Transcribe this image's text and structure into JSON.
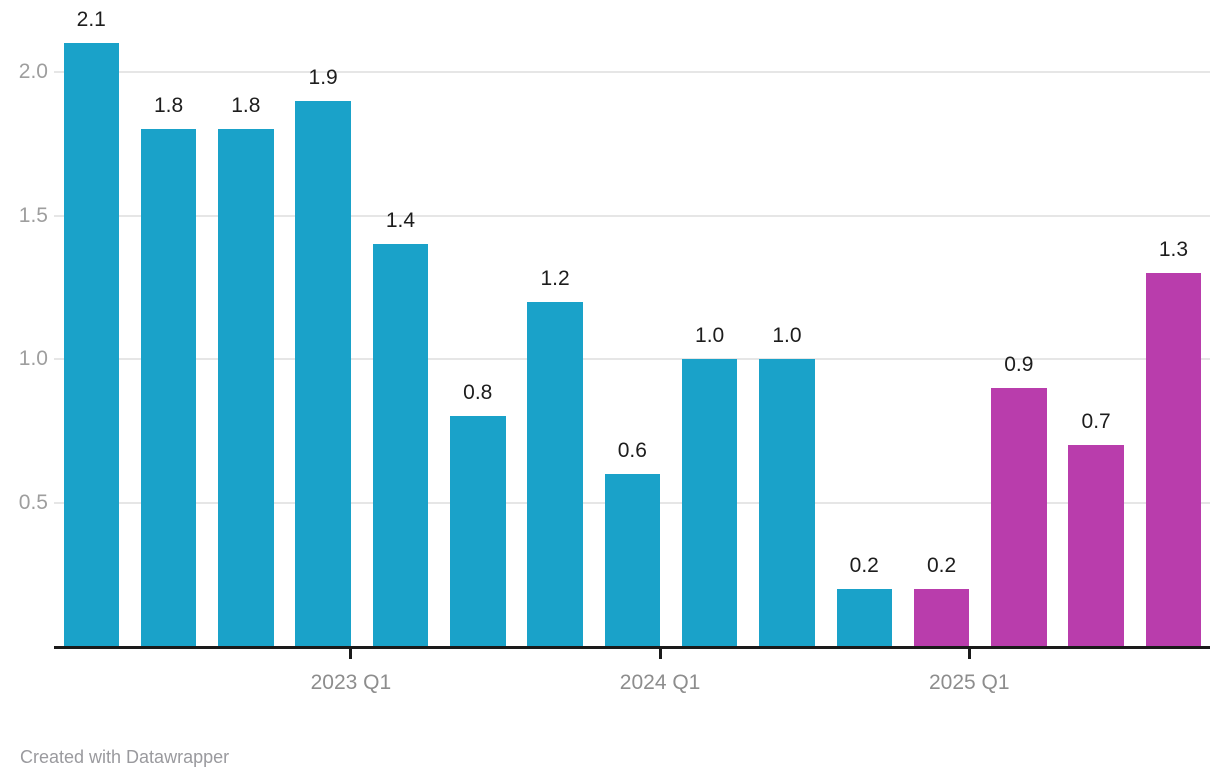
{
  "chart_data": {
    "type": "bar",
    "values": [
      2.1,
      1.8,
      1.8,
      1.9,
      1.4,
      0.8,
      1.2,
      0.6,
      1.0,
      1.0,
      0.2,
      0.2,
      0.9,
      0.7,
      1.3
    ],
    "value_labels": [
      "2.1",
      "1.8",
      "1.8",
      "1.9",
      "1.4",
      "0.8",
      "1.2",
      "0.6",
      "1.0",
      "1.0",
      "0.2",
      "0.2",
      "0.9",
      "0.7",
      "1.3"
    ],
    "bar_colors": [
      "#1aa2c9",
      "#1aa2c9",
      "#1aa2c9",
      "#1aa2c9",
      "#1aa2c9",
      "#1aa2c9",
      "#1aa2c9",
      "#1aa2c9",
      "#1aa2c9",
      "#1aa2c9",
      "#1aa2c9",
      "#b93dac",
      "#b93dac",
      "#b93dac",
      "#b93dac"
    ],
    "palette": {
      "primary_blue": "#1aa2c9",
      "highlight_magenta": "#b93dac",
      "gridline": "#e6e6e6",
      "axis_line": "#1a1a1a",
      "value_label": "#1d1d1d",
      "y_tick_label": "#9e9e9e",
      "x_tick_label": "#8d8d8d"
    },
    "title": "",
    "xlabel": "",
    "ylabel": "",
    "y_axis": {
      "tick_values": [
        0.5,
        1.0,
        1.5,
        2.0
      ],
      "tick_labels": [
        "0.5",
        "1.0",
        "1.5",
        "2.0"
      ],
      "range": [
        0,
        2.17
      ],
      "gridlines": true
    },
    "x_axis": {
      "tick_labels": [
        "2023 Q1",
        "2024 Q1",
        "2025 Q1"
      ],
      "tick_after_bar_index": [
        3,
        7,
        11
      ]
    },
    "legend": "none"
  },
  "footer": {
    "attribution": "Created with Datawrapper"
  }
}
